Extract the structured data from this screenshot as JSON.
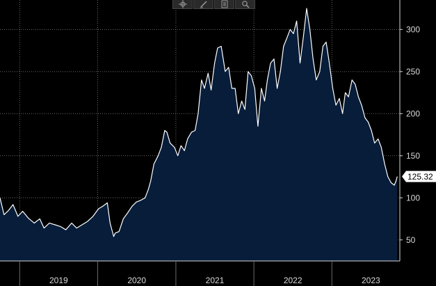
{
  "toolbar": {
    "icons": [
      "crosshair-icon",
      "draw-icon",
      "news-icon",
      "zoom-icon"
    ]
  },
  "colors": {
    "background": "#000000",
    "area_fill": "#071d3a",
    "line": "#ffffff",
    "grid": "#6b6b6b",
    "axis_text": "#d9d9d9",
    "last_value_box": "#ffffff"
  },
  "chart_data": {
    "type": "area",
    "title": "",
    "xlabel": "",
    "ylabel": "",
    "x_tick_labels": [
      "2019",
      "2020",
      "2021",
      "2022",
      "2023"
    ],
    "y_ticks": [
      50,
      100,
      150,
      200,
      250,
      300
    ],
    "ylim": [
      25,
      335
    ],
    "xlim": [
      "2018-10-01",
      "2023-11-15"
    ],
    "grid": true,
    "y_axis_side": "right",
    "last_value": "125.32",
    "series": [
      {
        "x": [
          "2018-10-01",
          "2018-10-20",
          "2018-11-10",
          "2018-12-01",
          "2018-12-24",
          "2019-01-15",
          "2019-02-10",
          "2019-03-10",
          "2019-04-05",
          "2019-04-25",
          "2019-05-20",
          "2019-06-15",
          "2019-07-10",
          "2019-08-05",
          "2019-09-01",
          "2019-09-25",
          "2019-10-20",
          "2019-11-15",
          "2019-12-10",
          "2020-01-05",
          "2020-01-25",
          "2020-02-15",
          "2020-02-28",
          "2020-03-16",
          "2020-03-23",
          "2020-04-10",
          "2020-04-30",
          "2020-05-20",
          "2020-06-10",
          "2020-06-30",
          "2020-07-20",
          "2020-08-10",
          "2020-08-25",
          "2020-09-05",
          "2020-09-20",
          "2020-10-10",
          "2020-10-25",
          "2020-11-10",
          "2020-11-20",
          "2020-12-05",
          "2020-12-25",
          "2021-01-10",
          "2021-01-25",
          "2021-02-10",
          "2021-02-25",
          "2021-03-15",
          "2021-04-01",
          "2021-04-15",
          "2021-05-01",
          "2021-05-15",
          "2021-06-01",
          "2021-06-15",
          "2021-07-01",
          "2021-07-15",
          "2021-08-01",
          "2021-08-20",
          "2021-09-05",
          "2021-09-20",
          "2021-10-05",
          "2021-10-20",
          "2021-11-05",
          "2021-11-20",
          "2021-12-05",
          "2021-12-20",
          "2022-01-05",
          "2022-01-20",
          "2022-02-05",
          "2022-02-20",
          "2022-03-05",
          "2022-03-20",
          "2022-04-05",
          "2022-04-20",
          "2022-05-05",
          "2022-05-20",
          "2022-06-05",
          "2022-06-20",
          "2022-07-05",
          "2022-07-20",
          "2022-08-05",
          "2022-08-20",
          "2022-09-05",
          "2022-09-20",
          "2022-10-05",
          "2022-10-20",
          "2022-11-05",
          "2022-11-20",
          "2022-12-05",
          "2022-12-20",
          "2023-01-05",
          "2023-01-20",
          "2023-02-05",
          "2023-02-20",
          "2023-03-05",
          "2023-03-20",
          "2023-04-05",
          "2023-04-20",
          "2023-05-05",
          "2023-05-20",
          "2023-06-05",
          "2023-06-20",
          "2023-07-05",
          "2023-07-20",
          "2023-08-05",
          "2023-08-20",
          "2023-09-05",
          "2023-09-20",
          "2023-10-05",
          "2023-10-20",
          "2023-10-28",
          "2023-11-03"
        ],
        "y": [
          100,
          80,
          85,
          92,
          78,
          84,
          76,
          70,
          75,
          64,
          70,
          68,
          66,
          62,
          70,
          64,
          68,
          72,
          78,
          87,
          90,
          94,
          70,
          54,
          58,
          60,
          75,
          82,
          90,
          95,
          97,
          100,
          110,
          120,
          140,
          150,
          160,
          180,
          178,
          165,
          160,
          150,
          162,
          156,
          170,
          178,
          180,
          200,
          240,
          230,
          248,
          228,
          260,
          278,
          280,
          250,
          255,
          230,
          230,
          200,
          215,
          205,
          250,
          245,
          230,
          185,
          230,
          215,
          240,
          260,
          265,
          230,
          250,
          280,
          290,
          300,
          295,
          310,
          260,
          290,
          325,
          300,
          265,
          240,
          250,
          280,
          285,
          260,
          230,
          210,
          218,
          200,
          225,
          220,
          240,
          235,
          220,
          210,
          195,
          190,
          180,
          165,
          170,
          160,
          140,
          125,
          118,
          115,
          120,
          125.32
        ]
      }
    ]
  }
}
